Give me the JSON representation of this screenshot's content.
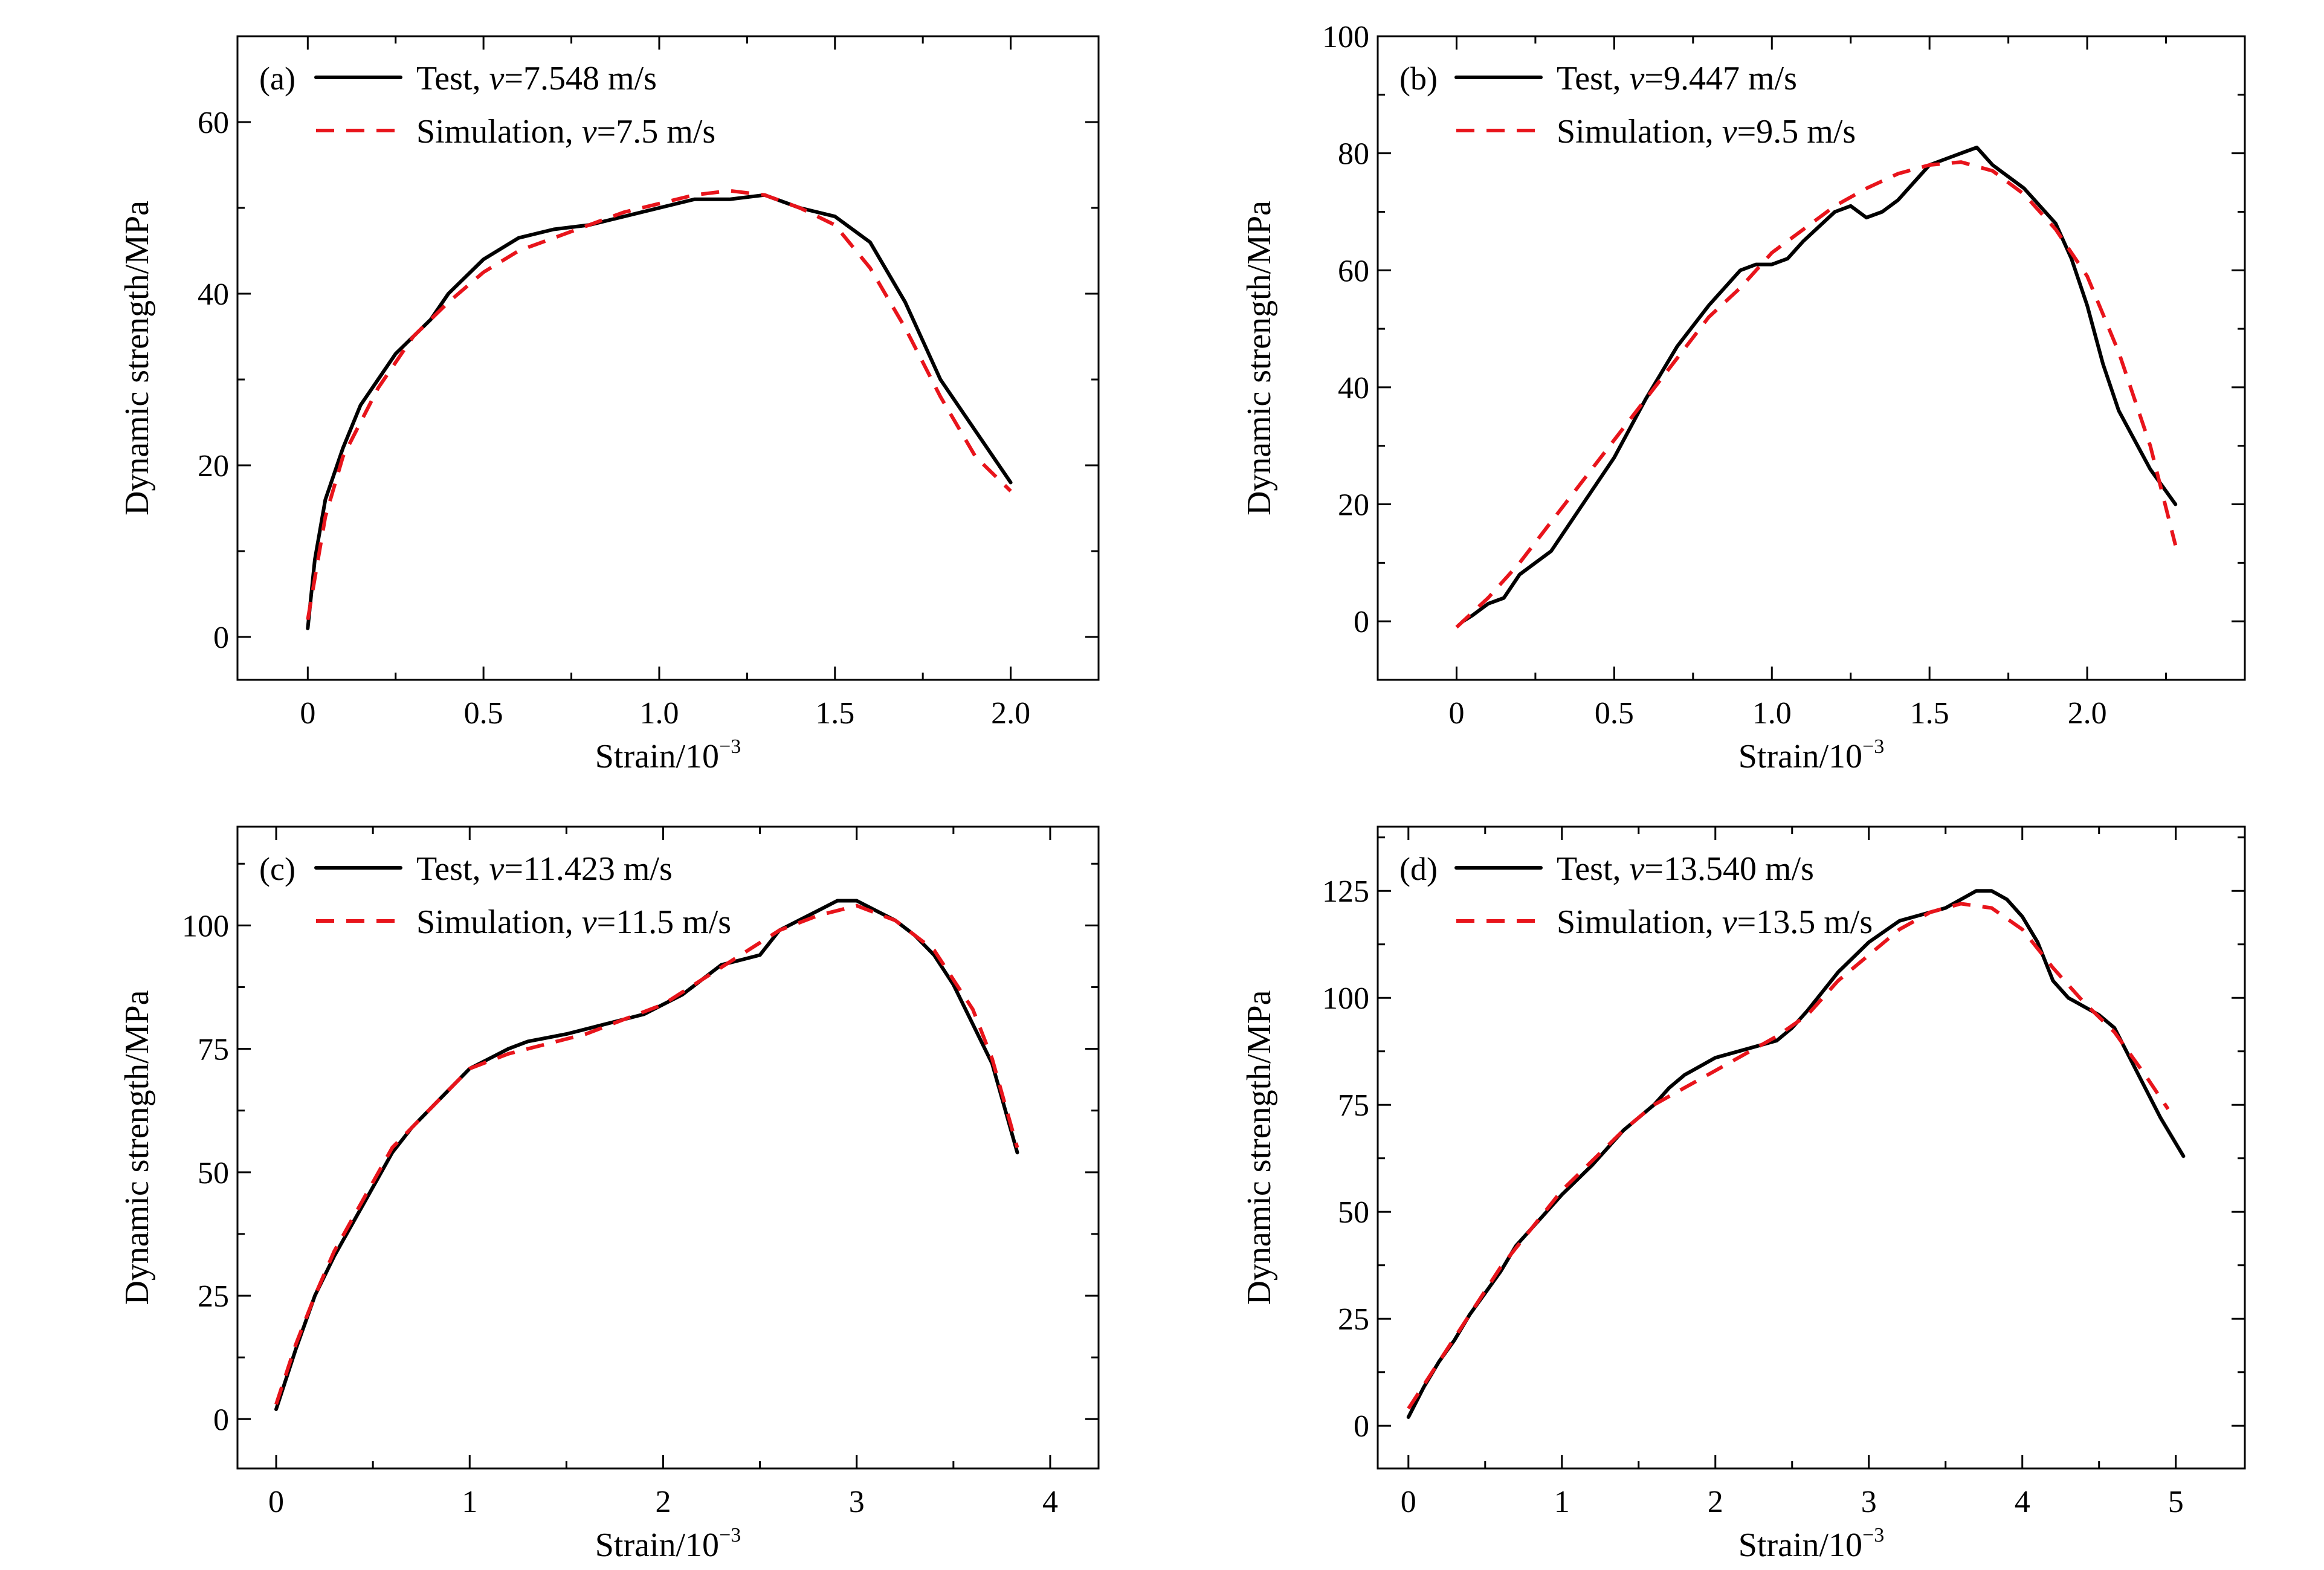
{
  "chart_data": [
    {
      "type": "line",
      "panel_label": "(a)",
      "xlabel": "Strain/10",
      "xlabel_sup": "−3",
      "ylabel": "Dynamic strength/MPa",
      "xlim": [
        -0.2,
        2.25
      ],
      "ylim": [
        -5,
        70
      ],
      "xticks": [
        0,
        0.5,
        1.0,
        1.5,
        2.0
      ],
      "xtick_labels": [
        "0",
        "0.5",
        "1.0",
        "1.5",
        "2.0"
      ],
      "yticks": [
        0,
        20,
        40,
        60
      ],
      "ytick_labels": [
        "0",
        "20",
        "40",
        "60"
      ],
      "legend": {
        "position": "top-left",
        "entries": [
          {
            "label": "Test, ",
            "sym": "v",
            "value": "=7.548 m/s"
          },
          {
            "label": "Simulation, ",
            "sym": "v",
            "value": "=7.5 m/s"
          }
        ]
      },
      "series": [
        {
          "name": "Test, v=7.548 m/s",
          "style": "solid",
          "color": "#000000",
          "x": [
            0,
            0.02,
            0.05,
            0.1,
            0.15,
            0.2,
            0.25,
            0.3,
            0.35,
            0.4,
            0.5,
            0.6,
            0.7,
            0.8,
            0.9,
            1.0,
            1.1,
            1.2,
            1.3,
            1.4,
            1.5,
            1.6,
            1.7,
            1.8,
            1.9,
            2.0
          ],
          "y": [
            1,
            9,
            16,
            22,
            27,
            30,
            33,
            35,
            37,
            40,
            44,
            46.5,
            47.5,
            48,
            49,
            50,
            51,
            51,
            51.5,
            50,
            49,
            46,
            39,
            30,
            24,
            18
          ]
        },
        {
          "name": "Simulation, v=7.5 m/s",
          "style": "dashed",
          "color": "#e8141b",
          "x": [
            0,
            0.05,
            0.1,
            0.2,
            0.3,
            0.4,
            0.5,
            0.6,
            0.7,
            0.8,
            0.9,
            1.0,
            1.1,
            1.2,
            1.3,
            1.4,
            1.5,
            1.6,
            1.7,
            1.8,
            1.9,
            2.0
          ],
          "y": [
            2,
            14,
            21,
            29,
            35,
            39,
            42.5,
            45,
            46.5,
            48,
            49.5,
            50.5,
            51.5,
            52,
            51.5,
            50,
            48,
            43,
            36,
            28,
            21,
            17
          ]
        }
      ]
    },
    {
      "type": "line",
      "panel_label": "(b)",
      "xlabel": "Strain/10",
      "xlabel_sup": "−3",
      "ylabel": "Dynamic strength/MPa",
      "xlim": [
        -0.25,
        2.5
      ],
      "ylim": [
        -10,
        100
      ],
      "xticks": [
        0,
        0.5,
        1.0,
        1.5,
        2.0
      ],
      "xtick_labels": [
        "0",
        "0.5",
        "1.0",
        "1.5",
        "2.0"
      ],
      "yticks": [
        0,
        20,
        40,
        60,
        80,
        100
      ],
      "ytick_labels": [
        "0",
        "20",
        "40",
        "60",
        "80",
        "100"
      ],
      "legend": {
        "position": "top-left",
        "entries": [
          {
            "label": "Test, ",
            "sym": "v",
            "value": "=9.447 m/s"
          },
          {
            "label": "Simulation, ",
            "sym": "v",
            "value": "=9.5 m/s"
          }
        ]
      },
      "series": [
        {
          "name": "Test, v=9.447 m/s",
          "style": "solid",
          "color": "#000000",
          "x": [
            0.02,
            0.05,
            0.1,
            0.15,
            0.2,
            0.3,
            0.4,
            0.5,
            0.6,
            0.7,
            0.8,
            0.9,
            0.95,
            1.0,
            1.05,
            1.1,
            1.2,
            1.25,
            1.3,
            1.35,
            1.4,
            1.5,
            1.6,
            1.65,
            1.7,
            1.8,
            1.9,
            1.95,
            2.0,
            2.05,
            2.1,
            2.2,
            2.28
          ],
          "y": [
            0,
            1,
            3,
            4,
            8,
            12,
            20,
            28,
            38,
            47,
            54,
            60,
            61,
            61,
            62,
            65,
            70,
            71,
            69,
            70,
            72,
            78,
            80,
            81,
            78,
            74,
            68,
            62,
            54,
            44,
            36,
            26,
            20
          ]
        },
        {
          "name": "Simulation, v=9.5 m/s",
          "style": "dashed",
          "color": "#e8141b",
          "x": [
            0,
            0.1,
            0.2,
            0.3,
            0.4,
            0.5,
            0.6,
            0.7,
            0.8,
            0.9,
            1.0,
            1.1,
            1.2,
            1.3,
            1.4,
            1.5,
            1.6,
            1.7,
            1.8,
            1.9,
            2.0,
            2.1,
            2.2,
            2.28
          ],
          "y": [
            -1,
            4,
            10,
            17,
            24,
            31,
            38,
            45,
            52,
            57,
            63,
            67,
            71,
            74,
            76.5,
            78,
            78.5,
            77,
            73,
            67,
            59,
            46,
            30,
            13
          ]
        }
      ]
    },
    {
      "type": "line",
      "panel_label": "(c)",
      "xlabel": "Strain/10",
      "xlabel_sup": "−3",
      "ylabel": "Dynamic strength/MPa",
      "xlim": [
        -0.2,
        4.25
      ],
      "ylim": [
        -10,
        120
      ],
      "xticks": [
        0,
        1,
        2,
        3,
        4
      ],
      "xtick_labels": [
        "0",
        "1",
        "2",
        "3",
        "4"
      ],
      "yticks": [
        0,
        25,
        50,
        75,
        100
      ],
      "ytick_labels": [
        "0",
        "25",
        "50",
        "75",
        "100"
      ],
      "legend": {
        "position": "top-left",
        "entries": [
          {
            "label": "Test, ",
            "sym": "v",
            "value": "=11.423 m/s"
          },
          {
            "label": "Simulation, ",
            "sym": "v",
            "value": "=11.5 m/s"
          }
        ]
      },
      "series": [
        {
          "name": "Test, v=11.423 m/s",
          "style": "solid",
          "color": "#000000",
          "x": [
            0,
            0.1,
            0.2,
            0.3,
            0.4,
            0.5,
            0.6,
            0.7,
            0.8,
            0.9,
            1.0,
            1.1,
            1.2,
            1.3,
            1.5,
            1.7,
            1.9,
            2.0,
            2.1,
            2.2,
            2.3,
            2.4,
            2.5,
            2.6,
            2.7,
            2.8,
            2.9,
            3.0,
            3.1,
            3.2,
            3.3,
            3.4,
            3.5,
            3.6,
            3.7,
            3.83
          ],
          "y": [
            2,
            14,
            25,
            33,
            40,
            47,
            54,
            59,
            63,
            67,
            71,
            73,
            75,
            76.5,
            78,
            80,
            82,
            84,
            86,
            89,
            92,
            93,
            94,
            99,
            101,
            103,
            105,
            105,
            103,
            101,
            98,
            94,
            88,
            80,
            72,
            54
          ]
        },
        {
          "name": "Simulation, v=11.5 m/s",
          "style": "dashed",
          "color": "#e8141b",
          "x": [
            0,
            0.1,
            0.2,
            0.3,
            0.4,
            0.5,
            0.6,
            0.8,
            1.0,
            1.2,
            1.4,
            1.6,
            1.8,
            2.0,
            2.2,
            2.4,
            2.6,
            2.8,
            3.0,
            3.2,
            3.4,
            3.6,
            3.7,
            3.83
          ],
          "y": [
            3,
            15,
            25,
            34,
            41,
            48,
            55,
            63,
            71,
            74,
            76,
            78,
            81,
            84,
            89,
            94,
            99,
            102,
            104,
            101,
            95,
            83,
            73,
            55
          ]
        }
      ]
    },
    {
      "type": "line",
      "panel_label": "(d)",
      "xlabel": "Strain/10",
      "xlabel_sup": "−3",
      "ylabel": "Dynamic strength/MPa",
      "xlim": [
        -0.2,
        5.45
      ],
      "ylim": [
        -10,
        140
      ],
      "xticks": [
        0,
        1,
        2,
        3,
        4,
        5
      ],
      "xtick_labels": [
        "0",
        "1",
        "2",
        "3",
        "4",
        "5"
      ],
      "yticks": [
        0,
        25,
        50,
        75,
        100,
        125
      ],
      "ytick_labels": [
        "0",
        "25",
        "50",
        "75",
        "100",
        "125"
      ],
      "legend": {
        "position": "top-left",
        "entries": [
          {
            "label": "Test, ",
            "sym": "v",
            "value": "=13.540 m/s"
          },
          {
            "label": "Simulation, ",
            "sym": "v",
            "value": "=13.5 m/s"
          }
        ]
      },
      "series": [
        {
          "name": "Test, v=13.540 m/s",
          "style": "solid",
          "color": "#000000",
          "x": [
            0,
            0.1,
            0.2,
            0.3,
            0.4,
            0.5,
            0.6,
            0.7,
            0.8,
            0.9,
            1.0,
            1.2,
            1.4,
            1.6,
            1.7,
            1.8,
            1.9,
            2.0,
            2.2,
            2.4,
            2.5,
            2.6,
            2.8,
            3.0,
            3.2,
            3.4,
            3.5,
            3.6,
            3.7,
            3.8,
            3.9,
            4.0,
            4.1,
            4.2,
            4.3,
            4.4,
            4.5,
            4.6,
            4.7,
            4.8,
            4.9,
            5.05
          ],
          "y": [
            2,
            9,
            15,
            20,
            26,
            31,
            36,
            42,
            46,
            50,
            54,
            61,
            69,
            75,
            79,
            82,
            84,
            86,
            88,
            90,
            93,
            97,
            106,
            113,
            118,
            120,
            121,
            123,
            125,
            125,
            123,
            119,
            113,
            104,
            100,
            98,
            96,
            93,
            86,
            79,
            72,
            63
          ]
        },
        {
          "name": "Simulation, v=13.5 m/s",
          "style": "dashed",
          "color": "#e8141b",
          "x": [
            0,
            0.2,
            0.4,
            0.6,
            0.8,
            1.0,
            1.2,
            1.4,
            1.6,
            1.8,
            2.0,
            2.2,
            2.4,
            2.6,
            2.8,
            3.0,
            3.2,
            3.4,
            3.6,
            3.8,
            4.0,
            4.2,
            4.4,
            4.6,
            4.8,
            4.95
          ],
          "y": [
            4,
            15,
            26,
            37,
            46,
            55,
            62,
            69,
            75,
            79,
            83,
            87,
            91,
            96,
            104,
            110,
            116,
            120,
            122,
            121,
            116,
            107,
            99,
            92,
            82,
            74
          ]
        }
      ]
    }
  ]
}
